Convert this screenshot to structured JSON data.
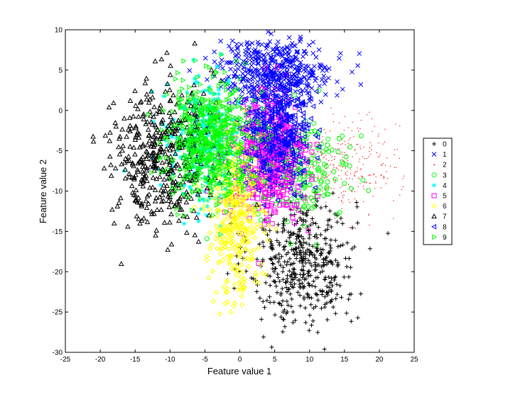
{
  "chart_data": {
    "type": "scatter",
    "title": "",
    "xlabel": "Feature value 1",
    "ylabel": "Feature value 2",
    "xlim": [
      -25,
      25
    ],
    "ylim": [
      -30,
      10
    ],
    "xticks": [
      -25,
      -20,
      -15,
      -10,
      -5,
      0,
      5,
      10,
      15,
      20,
      25
    ],
    "yticks": [
      -30,
      -25,
      -20,
      -15,
      -10,
      -5,
      0,
      5,
      10
    ],
    "grid": false,
    "legend_position": "right",
    "series": [
      {
        "name": "0",
        "marker": "plus",
        "color": "#000000",
        "cx": 9,
        "cy": -18.5,
        "sx": 3.8,
        "sy": 4.2,
        "count": 480
      },
      {
        "name": "1",
        "marker": "x",
        "color": "#0000ff",
        "cx": 5,
        "cy": 5,
        "sx": 4.2,
        "sy": 2.0,
        "count": 420
      },
      {
        "name": "2",
        "marker": "dot",
        "color": "#ff0000",
        "cx": 14,
        "cy": -7,
        "sx": 4.5,
        "sy": 2.8,
        "count": 380
      },
      {
        "name": "3",
        "marker": "circle",
        "color": "#00ff00",
        "cx": 9,
        "cy": -7.5,
        "sx": 3.5,
        "sy": 3.0,
        "count": 200
      },
      {
        "name": "4",
        "marker": "star",
        "color": "#00ffff",
        "cx": -5,
        "cy": -4,
        "sx": 2.8,
        "sy": 4.0,
        "count": 260
      },
      {
        "name": "5",
        "marker": "square",
        "color": "#ff00ff",
        "cx": 4,
        "cy": -6,
        "sx": 2.7,
        "sy": 4.0,
        "count": 500
      },
      {
        "name": "6",
        "marker": "diamond",
        "color": "#ffff00",
        "cx": -0.5,
        "cy": -12.5,
        "sx": 1.8,
        "sy": 5.2,
        "count": 420
      },
      {
        "name": "7",
        "marker": "triangle-up",
        "color": "#000000",
        "cx": -11,
        "cy": -5.5,
        "sx": 3.6,
        "sy": 4.6,
        "count": 480
      },
      {
        "name": "8",
        "marker": "triangle-left",
        "color": "#0000ff",
        "cx": 5.5,
        "cy": -2,
        "sx": 2.5,
        "sy": 3.5,
        "count": 440
      },
      {
        "name": "9",
        "marker": "triangle-right",
        "color": "#00ff00",
        "cx": -4,
        "cy": -3.5,
        "sx": 3.2,
        "sy": 3.5,
        "count": 600
      }
    ]
  }
}
